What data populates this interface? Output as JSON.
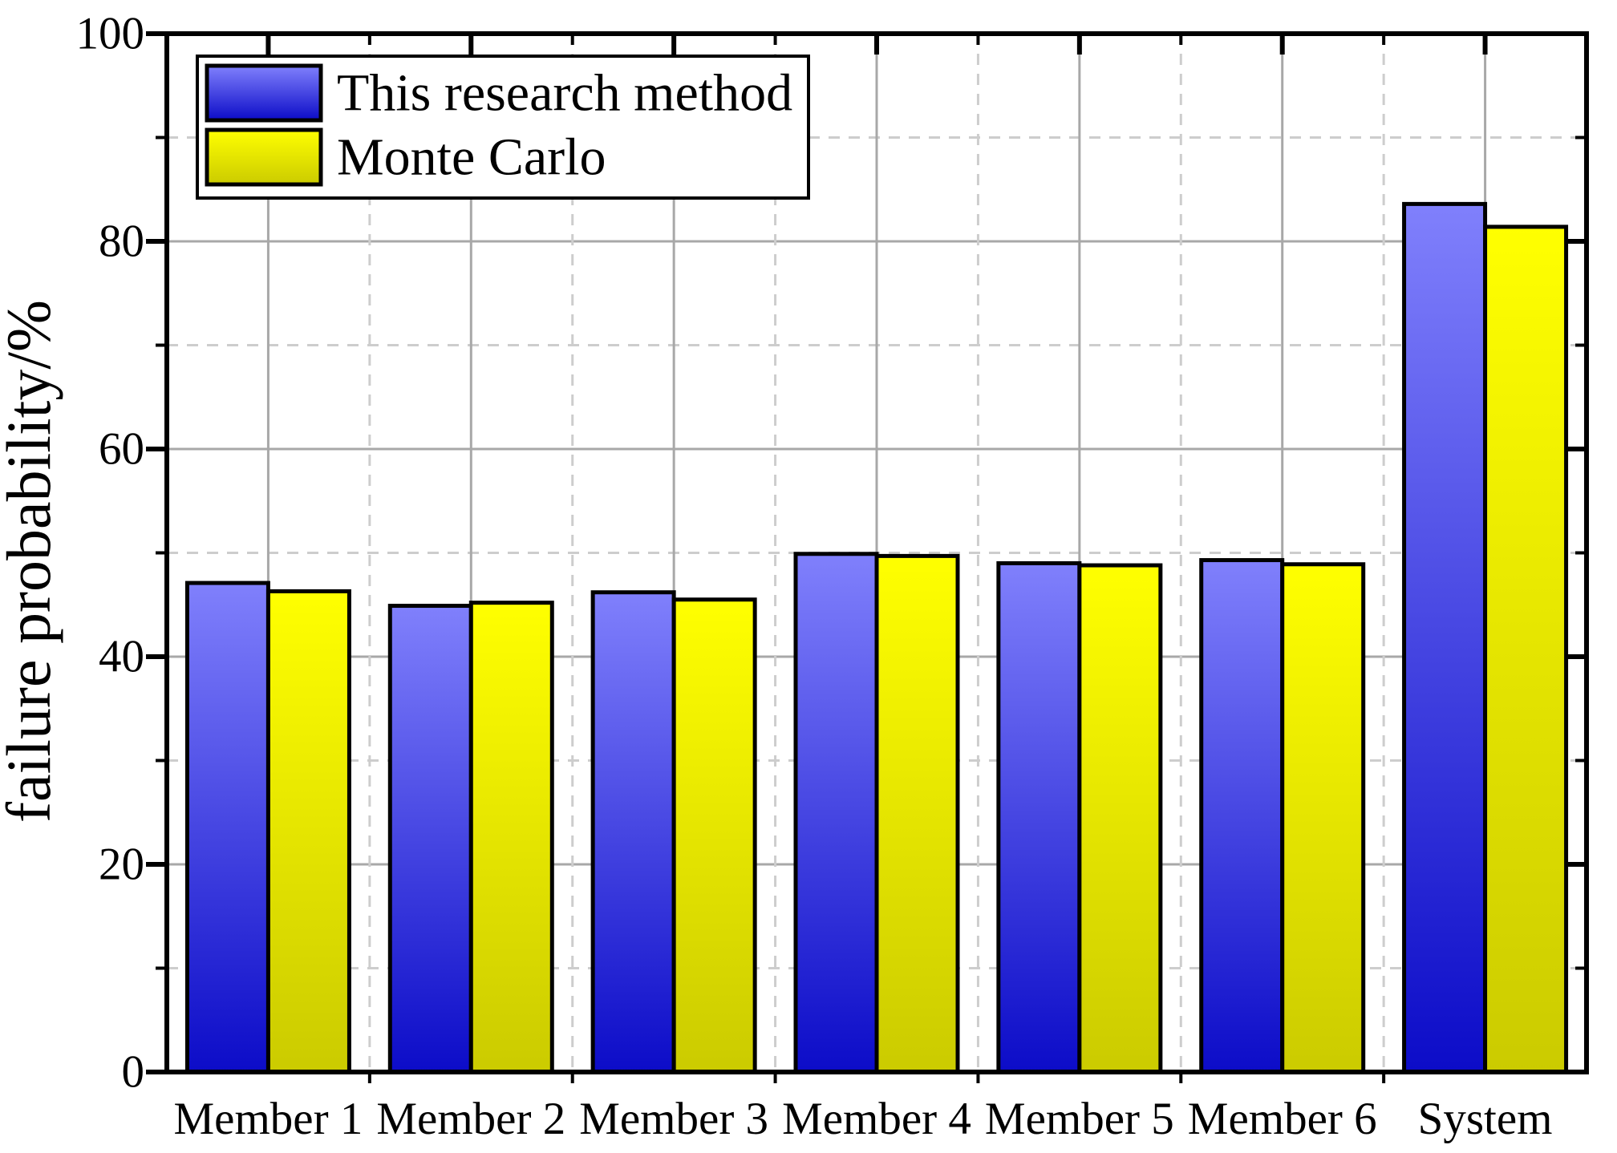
{
  "figure": {
    "background": "#ffffff"
  },
  "chart_data": {
    "type": "bar",
    "title": "",
    "xlabel": "",
    "ylabel": "failure probability/%",
    "ylim": [
      0,
      100
    ],
    "categories": [
      "Member 1",
      "Member 2",
      "Member 3",
      "Member 4",
      "Member 5",
      "Member 6",
      "System"
    ],
    "series": [
      {
        "name": "This research method",
        "values": [
          47.1,
          44.9,
          46.2,
          49.9,
          49.0,
          49.3,
          83.6
        ],
        "fill_top": "#8080FC",
        "fill_bottom": "#0C0CC8",
        "border": "#000000"
      },
      {
        "name": "Monte Carlo",
        "values": [
          46.3,
          45.2,
          45.5,
          49.7,
          48.8,
          48.9,
          81.4
        ],
        "fill_top": "#FFFF00",
        "fill_bottom": "#CBCB00",
        "border": "#000000"
      }
    ],
    "y_major_ticks": [
      0,
      20,
      40,
      60,
      80,
      100
    ],
    "y_minor_ticks": [
      10,
      30,
      50,
      70,
      90
    ],
    "grid": {
      "major_color": "#a8a8a8",
      "minor_color": "#cdcdcd",
      "minor_style": "dashed",
      "frame_color": "#000000"
    },
    "legend": {
      "position": "top-left",
      "entries": [
        "This research method",
        "Monte Carlo"
      ]
    }
  }
}
